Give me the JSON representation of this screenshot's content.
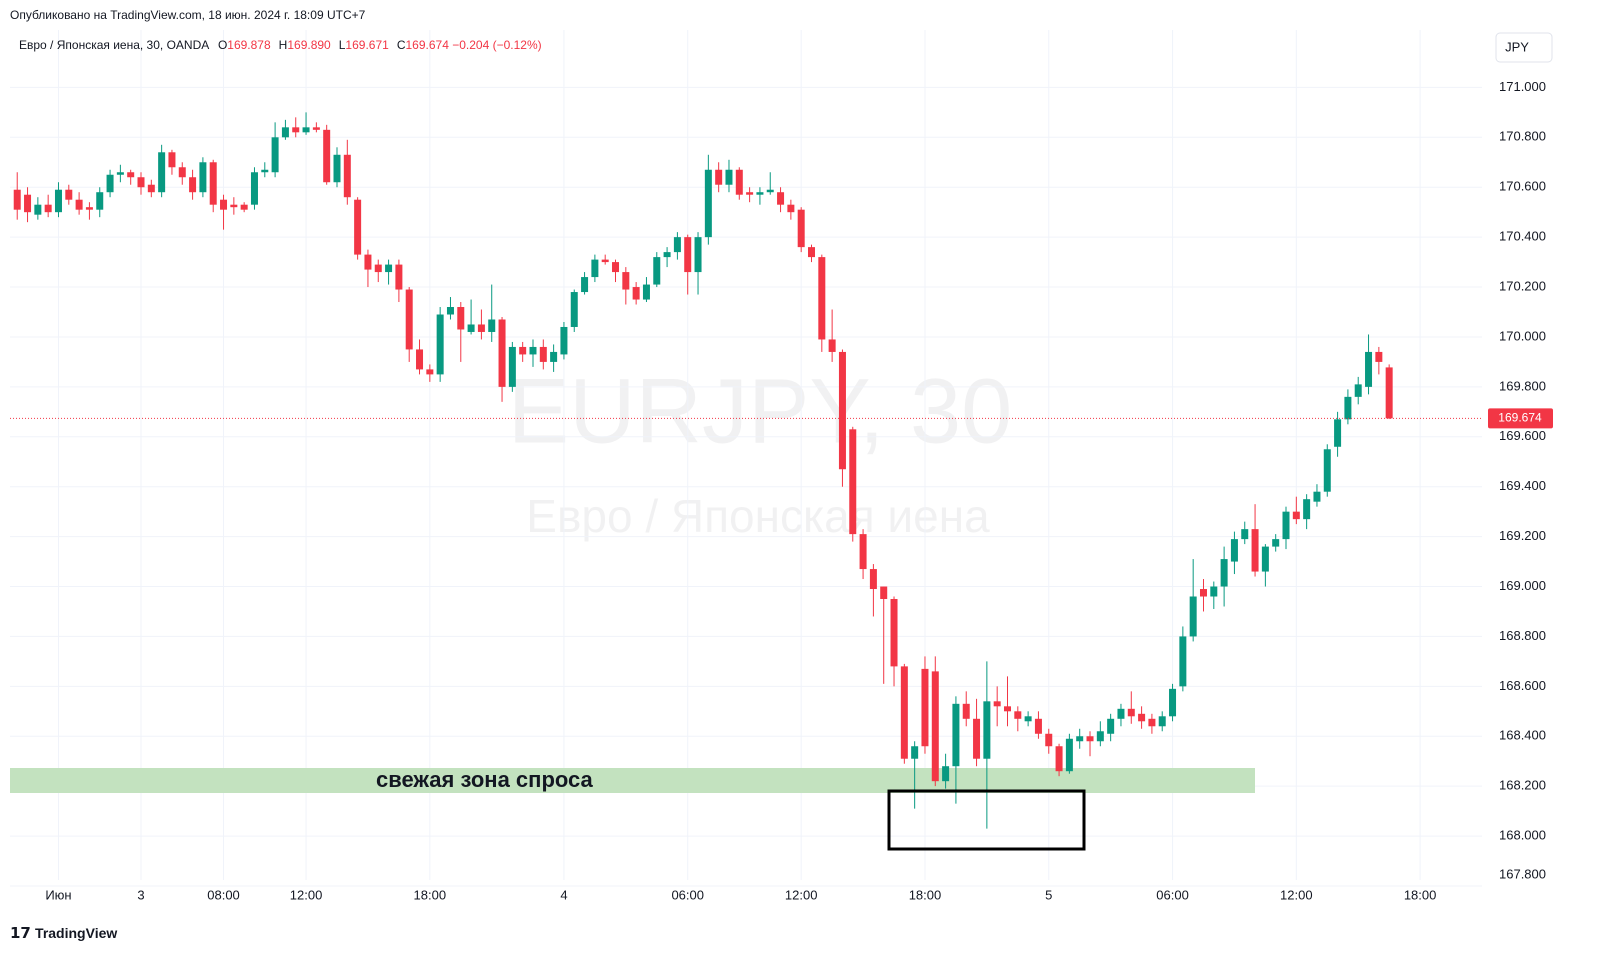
{
  "published": "Опубликовано на TradingView.com, 18 июн. 2024 г. 18:09 UTC+7",
  "logo": "TradingView",
  "chart_data": {
    "type": "candlestick",
    "title": "Евро / Японская иена, 30, OANDA",
    "ohlc": [
      [
        "O",
        "169.878"
      ],
      [
        "H",
        "169.890"
      ],
      [
        "L",
        "169.671"
      ],
      [
        "C",
        "169.674"
      ]
    ],
    "change": "−0.204 (−0.12%)",
    "currency": "JPY",
    "watermark": "EURJPY, 30",
    "watermark_subtitle": "Евро / Японская иена",
    "annotation": "свежая зона спроса",
    "up_color": "#089981",
    "down_color": "#f23645",
    "grid": true,
    "open": [
      170.59,
      170.57,
      170.49,
      170.53,
      170.5,
      170.59,
      170.55,
      170.52,
      170.51,
      170.58,
      170.65,
      170.66,
      170.64,
      170.61,
      170.58,
      170.74,
      170.68,
      170.64,
      170.58,
      170.7,
      170.55,
      170.53,
      170.53,
      170.53,
      170.66,
      170.66,
      170.8,
      170.84,
      170.82,
      170.84,
      170.83,
      170.62,
      170.73,
      170.55,
      170.33,
      170.29,
      170.26,
      170.29,
      170.19,
      169.95,
      169.87,
      169.85,
      170.09,
      170.12,
      170.02,
      170.05,
      170.02,
      170.07,
      169.8,
      169.96,
      169.93,
      169.96,
      169.9,
      169.93,
      170.04,
      170.18,
      170.24,
      170.31,
      170.3,
      170.26,
      170.2,
      170.15,
      170.21,
      170.32,
      170.34,
      170.4,
      170.26,
      170.4,
      170.67,
      170.61,
      170.67,
      170.58,
      170.57,
      170.58,
      170.58,
      170.53,
      170.51,
      170.36,
      170.32,
      169.99,
      169.94,
      169.63,
      169.21,
      169.07,
      169.0,
      168.95,
      168.68,
      168.31,
      168.67,
      168.66,
      168.22,
      168.28,
      168.53,
      168.47,
      168.31,
      168.54,
      168.52,
      168.5,
      168.46,
      168.47,
      168.41,
      168.36,
      168.26,
      168.38,
      168.4,
      168.38,
      168.41,
      168.47,
      168.51,
      168.49,
      168.47,
      168.44,
      168.48,
      168.6,
      168.8,
      168.99,
      168.96,
      169.0,
      169.1,
      169.19,
      169.23,
      169.06,
      169.16,
      169.19,
      169.3,
      169.27,
      169.34,
      169.38,
      169.56,
      169.67,
      169.76,
      169.8,
      169.94,
      169.878
    ],
    "high": [
      170.66,
      170.6,
      170.56,
      170.57,
      170.62,
      170.61,
      170.58,
      170.54,
      170.6,
      170.67,
      170.69,
      170.67,
      170.66,
      170.63,
      170.77,
      170.75,
      170.7,
      170.67,
      170.72,
      170.71,
      170.57,
      170.56,
      170.54,
      170.68,
      170.7,
      170.86,
      170.87,
      170.88,
      170.9,
      170.86,
      170.85,
      170.76,
      170.79,
      170.56,
      170.35,
      170.31,
      170.31,
      170.31,
      170.2,
      169.99,
      169.89,
      170.12,
      170.16,
      170.14,
      170.15,
      170.11,
      170.21,
      170.08,
      169.98,
      169.98,
      169.99,
      169.99,
      169.97,
      170.06,
      170.19,
      170.26,
      170.33,
      170.33,
      170.31,
      170.28,
      170.22,
      170.24,
      170.34,
      170.36,
      170.42,
      170.41,
      170.42,
      170.73,
      170.7,
      170.71,
      170.68,
      170.6,
      170.6,
      170.66,
      170.6,
      170.55,
      170.52,
      170.37,
      170.33,
      170.11,
      169.95,
      169.64,
      169.23,
      169.09,
      169.0,
      168.96,
      168.69,
      168.38,
      168.72,
      168.72,
      168.33,
      168.56,
      168.58,
      168.55,
      168.7,
      168.6,
      168.64,
      168.52,
      168.5,
      168.5,
      168.43,
      168.37,
      168.41,
      168.43,
      168.42,
      168.46,
      168.49,
      168.53,
      168.58,
      168.52,
      168.49,
      168.5,
      168.61,
      168.84,
      169.11,
      169.03,
      169.02,
      169.16,
      169.22,
      169.26,
      169.33,
      169.17,
      169.21,
      169.32,
      169.36,
      169.37,
      169.41,
      169.57,
      169.7,
      169.79,
      169.84,
      170.01,
      169.96,
      169.89
    ],
    "low": [
      170.47,
      170.46,
      170.47,
      170.48,
      170.48,
      170.53,
      170.49,
      170.47,
      170.48,
      170.56,
      170.62,
      170.61,
      170.57,
      170.56,
      170.56,
      170.65,
      170.61,
      170.55,
      170.56,
      170.5,
      170.43,
      170.49,
      170.5,
      170.51,
      170.64,
      170.64,
      170.79,
      170.8,
      170.81,
      170.82,
      170.61,
      170.6,
      170.53,
      170.31,
      170.2,
      170.22,
      170.21,
      170.14,
      169.9,
      169.85,
      169.82,
      169.82,
      170.07,
      169.9,
      170.01,
      169.99,
      169.98,
      169.74,
      169.78,
      169.9,
      169.88,
      169.87,
      169.86,
      169.91,
      170.02,
      170.17,
      170.22,
      170.29,
      170.22,
      170.13,
      170.13,
      170.14,
      170.2,
      170.28,
      170.31,
      170.17,
      170.17,
      170.37,
      170.58,
      170.58,
      170.55,
      170.54,
      170.53,
      170.57,
      170.5,
      170.47,
      170.34,
      170.3,
      169.94,
      169.9,
      169.4,
      169.18,
      169.03,
      168.88,
      168.61,
      168.6,
      168.29,
      168.11,
      168.33,
      168.2,
      168.19,
      168.13,
      168.44,
      168.28,
      168.03,
      168.44,
      168.44,
      168.42,
      168.44,
      168.39,
      168.33,
      168.24,
      168.25,
      168.35,
      168.32,
      168.36,
      168.38,
      168.44,
      168.45,
      168.43,
      168.41,
      168.42,
      168.46,
      168.58,
      168.78,
      168.9,
      168.91,
      168.92,
      169.05,
      169.17,
      169.04,
      169.0,
      169.14,
      169.15,
      169.25,
      169.23,
      169.32,
      169.36,
      169.52,
      169.65,
      169.73,
      169.77,
      169.85,
      169.671
    ],
    "close": [
      170.51,
      170.5,
      170.53,
      170.5,
      170.59,
      170.55,
      170.51,
      170.51,
      170.58,
      170.65,
      170.66,
      170.64,
      170.6,
      170.58,
      170.74,
      170.68,
      170.64,
      170.58,
      170.7,
      170.53,
      170.51,
      170.52,
      170.51,
      170.66,
      170.67,
      170.8,
      170.84,
      170.82,
      170.84,
      170.83,
      170.62,
      170.73,
      170.56,
      170.33,
      170.27,
      170.26,
      170.29,
      170.19,
      169.95,
      169.87,
      169.85,
      170.09,
      170.12,
      170.03,
      170.05,
      170.02,
      170.07,
      169.8,
      169.96,
      169.93,
      169.96,
      169.9,
      169.94,
      170.04,
      170.18,
      170.24,
      170.31,
      170.3,
      170.26,
      170.19,
      170.15,
      170.21,
      170.32,
      170.34,
      170.4,
      170.26,
      170.4,
      170.67,
      170.61,
      170.67,
      170.57,
      170.57,
      170.58,
      170.59,
      170.53,
      170.5,
      170.36,
      170.32,
      169.99,
      169.94,
      169.47,
      169.21,
      169.07,
      168.99,
      168.95,
      168.68,
      168.31,
      168.36,
      168.36,
      168.22,
      168.28,
      168.53,
      168.47,
      168.31,
      168.54,
      168.52,
      168.5,
      168.47,
      168.48,
      168.41,
      168.36,
      168.26,
      168.39,
      168.4,
      168.38,
      168.42,
      168.47,
      168.51,
      168.48,
      168.46,
      168.44,
      168.48,
      168.59,
      168.8,
      168.96,
      168.96,
      169.0,
      169.11,
      169.19,
      169.23,
      169.06,
      169.16,
      169.19,
      169.3,
      169.27,
      169.35,
      169.38,
      169.55,
      169.67,
      169.76,
      169.81,
      169.94,
      169.9,
      169.674
    ],
    "xlim": [
      -0.7,
      142
    ],
    "xticks": [
      {
        "value": 4,
        "label": "Июн"
      },
      {
        "value": 12,
        "label": "3"
      },
      {
        "value": 20,
        "label": "08:00"
      },
      {
        "value": 28,
        "label": "12:00"
      },
      {
        "value": 40,
        "label": "18:00"
      },
      {
        "value": 53,
        "label": "4"
      },
      {
        "value": 65,
        "label": "06:00"
      },
      {
        "value": 76,
        "label": "12:00"
      },
      {
        "value": 88,
        "label": "18:00"
      },
      {
        "value": 100,
        "label": "5"
      },
      {
        "value": 112,
        "label": "06:00"
      },
      {
        "value": 124,
        "label": "12:00"
      },
      {
        "value": 136,
        "label": "18:00"
      }
    ],
    "ylim": [
      167.8,
      171.23
    ],
    "yticks": [
      {
        "value": 167.8,
        "label": "167.800"
      },
      {
        "value": 168.0,
        "label": "168.000"
      },
      {
        "value": 168.2,
        "label": "168.200"
      },
      {
        "value": 168.4,
        "label": "168.400"
      },
      {
        "value": 168.6,
        "label": "168.600"
      },
      {
        "value": 168.8,
        "label": "168.800"
      },
      {
        "value": 169.0,
        "label": "169.000"
      },
      {
        "value": 169.2,
        "label": "169.200"
      },
      {
        "value": 169.4,
        "label": "169.400"
      },
      {
        "value": 169.6,
        "label": "169.600"
      },
      {
        "value": 169.8,
        "label": "169.800"
      },
      {
        "value": 170.0,
        "label": "170.000"
      },
      {
        "value": 170.2,
        "label": "170.200"
      },
      {
        "value": 170.4,
        "label": "170.400"
      },
      {
        "value": 170.6,
        "label": "170.600"
      },
      {
        "value": 170.8,
        "label": "170.800"
      },
      {
        "value": 171.0,
        "label": "171.000"
      }
    ]
  }
}
